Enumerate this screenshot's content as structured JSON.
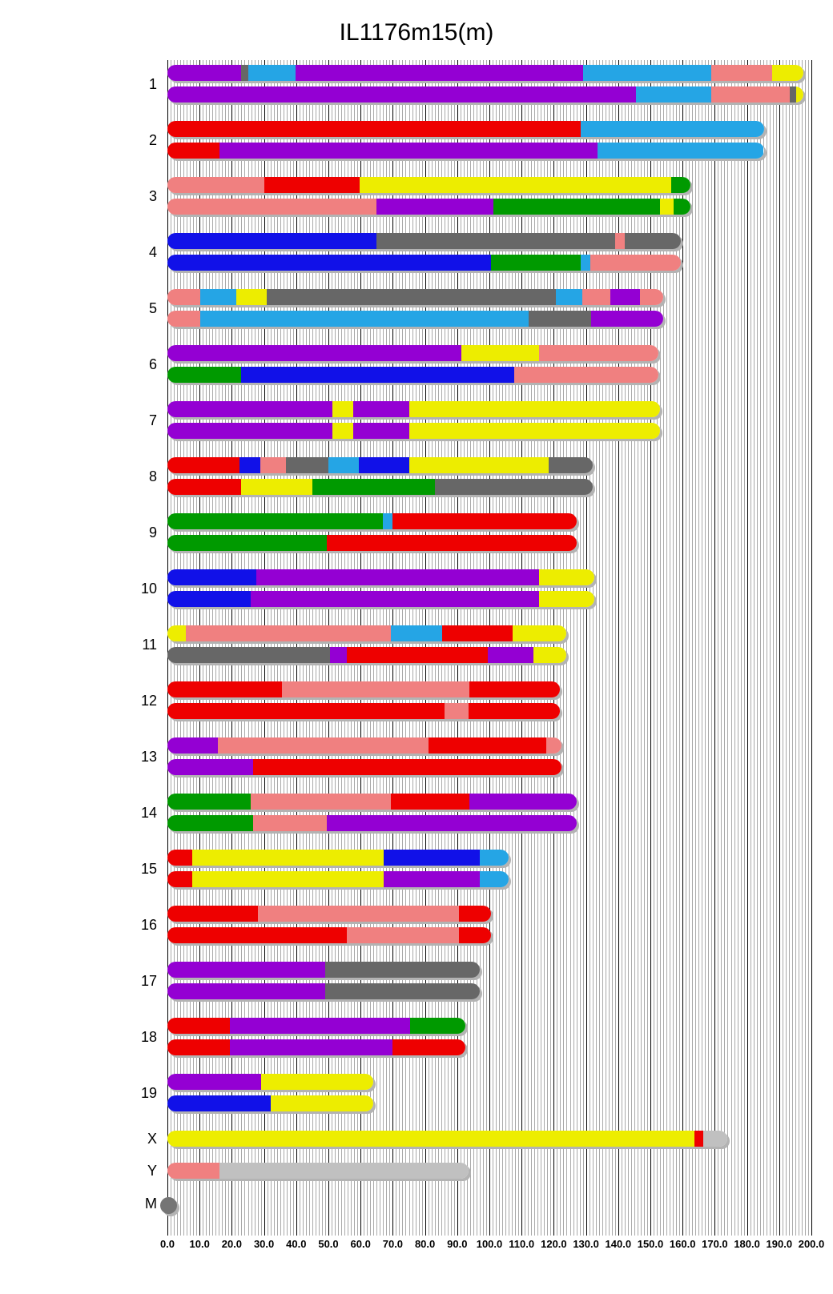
{
  "chart_data": {
    "type": "ideogram",
    "title": "IL1176m15(m)",
    "x_axis": {
      "min": 0,
      "max": 200,
      "major_step": 10,
      "minor_step": 1,
      "tick_labels": [
        "0.0",
        "10.0",
        "20.0",
        "30.0",
        "40.0",
        "50.0",
        "60.0",
        "70.0",
        "80.0",
        "90.0",
        "100.0",
        "110.0",
        "120.0",
        "130.0",
        "140.0",
        "150.0",
        "160.0",
        "170.0",
        "180.0",
        "190.0",
        "200.0"
      ],
      "units": "Mb"
    },
    "legend_position": "none",
    "grid": "on",
    "colors": {
      "red": "#ee0000",
      "pink": "#f08080",
      "yellow": "#ededed00",
      "purple": "#9400d3",
      "blue": "#1111e8",
      "cyan": "#25a5e5",
      "green": "#009a00",
      "darkgray": "#676767",
      "lightgray": "#c0c0c0",
      "dotgray": "#757575"
    },
    "chromosomes": [
      {
        "name": "1",
        "rows": [
          [
            [
              "purple",
              0,
              22.8
            ],
            [
              "darkgray",
              22.8,
              25.2
            ],
            [
              "cyan",
              25.2,
              39.8
            ],
            [
              "purple",
              39.8,
              129.0
            ],
            [
              "cyan",
              129.0,
              168.8
            ],
            [
              "pink",
              168.8,
              187.8
            ],
            [
              "yellow",
              187.8,
              197.5
            ]
          ],
          [
            [
              "purple",
              0,
              145.4
            ],
            [
              "cyan",
              145.4,
              168.8
            ],
            [
              "pink",
              168.8,
              193.3
            ],
            [
              "darkgray",
              193.3,
              195.3
            ],
            [
              "yellow",
              195.3,
              197.5
            ]
          ]
        ]
      },
      {
        "name": "2",
        "rows": [
          [
            [
              "red",
              0,
              128.3
            ],
            [
              "cyan",
              128.3,
              185.2
            ]
          ],
          [
            [
              "red",
              0,
              16.2
            ],
            [
              "purple",
              16.2,
              133.7
            ],
            [
              "cyan",
              133.7,
              185.2
            ]
          ]
        ]
      },
      {
        "name": "3",
        "rows": [
          [
            [
              "pink",
              0,
              30.2
            ],
            [
              "red",
              30.2,
              59.7
            ],
            [
              "yellow",
              59.7,
              156.5
            ],
            [
              "green",
              156.5,
              162.5
            ]
          ],
          [
            [
              "pink",
              0,
              65.0
            ],
            [
              "purple",
              65.0,
              101.3
            ],
            [
              "green",
              101.3,
              152.9
            ],
            [
              "yellow",
              152.9,
              157.2
            ],
            [
              "green",
              157.2,
              162.5
            ]
          ]
        ]
      },
      {
        "name": "4",
        "rows": [
          [
            [
              "blue",
              0,
              65.0
            ],
            [
              "darkgray",
              65.0,
              139.0
            ],
            [
              "pink",
              139.0,
              142.0
            ],
            [
              "darkgray",
              142.0,
              159.5
            ]
          ],
          [
            [
              "blue",
              0,
              100.6
            ],
            [
              "green",
              100.6,
              128.3
            ],
            [
              "cyan",
              128.3,
              131.4
            ],
            [
              "pink",
              131.4,
              159.5
            ]
          ]
        ]
      },
      {
        "name": "5",
        "rows": [
          [
            [
              "pink",
              0,
              10.2
            ],
            [
              "cyan",
              10.2,
              21.3
            ],
            [
              "yellow",
              21.3,
              30.9
            ],
            [
              "darkgray",
              30.9,
              120.6
            ],
            [
              "cyan",
              120.6,
              128.8
            ],
            [
              "pink",
              128.8,
              137.5
            ],
            [
              "purple",
              137.5,
              146.7
            ],
            [
              "pink",
              146.7,
              154.0
            ]
          ],
          [
            [
              "pink",
              0,
              10.2
            ],
            [
              "cyan",
              10.2,
              112.1
            ],
            [
              "darkgray",
              112.1,
              131.7
            ],
            [
              "purple",
              131.7,
              154.0
            ]
          ]
        ]
      },
      {
        "name": "6",
        "rows": [
          [
            [
              "purple",
              0,
              91.3
            ],
            [
              "yellow",
              91.3,
              115.5
            ],
            [
              "pink",
              115.5,
              152.5
            ]
          ],
          [
            [
              "green",
              0,
              22.8
            ],
            [
              "blue",
              22.8,
              107.7
            ],
            [
              "pink",
              107.7,
              152.5
            ]
          ]
        ]
      },
      {
        "name": "7",
        "rows": [
          [
            [
              "purple",
              0,
              51.2
            ],
            [
              "yellow",
              51.2,
              57.6
            ],
            [
              "purple",
              57.6,
              75.2
            ],
            [
              "yellow",
              75.2,
              153.0
            ]
          ],
          [
            [
              "purple",
              0,
              51.2
            ],
            [
              "yellow",
              51.2,
              57.6
            ],
            [
              "purple",
              57.6,
              75.2
            ],
            [
              "yellow",
              75.2,
              153.0
            ]
          ]
        ]
      },
      {
        "name": "8",
        "rows": [
          [
            [
              "red",
              0,
              22.4
            ],
            [
              "blue",
              22.4,
              28.9
            ],
            [
              "pink",
              28.9,
              36.9
            ],
            [
              "darkgray",
              36.9,
              50.0
            ],
            [
              "cyan",
              50.0,
              59.5
            ],
            [
              "blue",
              59.5,
              75.2
            ],
            [
              "yellow",
              75.2,
              118.3
            ],
            [
              "darkgray",
              118.3,
              132.0
            ]
          ],
          [
            [
              "red",
              0,
              22.8
            ],
            [
              "yellow",
              22.8,
              45.1
            ],
            [
              "green",
              45.1,
              83.2
            ],
            [
              "darkgray",
              83.2,
              132.0
            ]
          ]
        ]
      },
      {
        "name": "9",
        "rows": [
          [
            [
              "green",
              0,
              66.9
            ],
            [
              "cyan",
              66.9,
              70.0
            ],
            [
              "red",
              70.0,
              127.0
            ]
          ],
          [
            [
              "green",
              0,
              49.4
            ],
            [
              "red",
              49.4,
              127.0
            ]
          ]
        ]
      },
      {
        "name": "10",
        "rows": [
          [
            [
              "blue",
              0,
              27.7
            ],
            [
              "purple",
              27.7,
              115.5
            ],
            [
              "yellow",
              115.5,
              132.5
            ]
          ],
          [
            [
              "blue",
              0,
              25.9
            ],
            [
              "purple",
              25.9,
              115.5
            ],
            [
              "yellow",
              115.5,
              132.5
            ]
          ]
        ]
      },
      {
        "name": "11",
        "rows": [
          [
            [
              "yellow",
              0,
              5.7
            ],
            [
              "pink",
              5.7,
              69.3
            ],
            [
              "cyan",
              69.3,
              85.3
            ],
            [
              "red",
              85.3,
              107.3
            ],
            [
              "yellow",
              107.3,
              124.0
            ]
          ],
          [
            [
              "darkgray",
              0,
              50.4
            ],
            [
              "purple",
              50.4,
              55.8
            ],
            [
              "red",
              55.8,
              99.6
            ],
            [
              "purple",
              99.6,
              113.8
            ],
            [
              "yellow",
              113.8,
              124.0
            ]
          ]
        ]
      },
      {
        "name": "12",
        "rows": [
          [
            [
              "red",
              0,
              35.6
            ],
            [
              "pink",
              35.6,
              93.9
            ],
            [
              "red",
              93.9,
              122.0
            ]
          ],
          [
            [
              "red",
              0,
              86.0
            ],
            [
              "pink",
              86.0,
              93.5
            ],
            [
              "red",
              93.5,
              122.0
            ]
          ]
        ]
      },
      {
        "name": "13",
        "rows": [
          [
            [
              "purple",
              0,
              15.6
            ],
            [
              "pink",
              15.6,
              81.1
            ],
            [
              "red",
              81.1,
              117.6
            ],
            [
              "pink",
              117.6,
              122.5
            ]
          ],
          [
            [
              "purple",
              0,
              26.6
            ],
            [
              "red",
              26.6,
              122.5
            ]
          ]
        ]
      },
      {
        "name": "14",
        "rows": [
          [
            [
              "green",
              0,
              25.9
            ],
            [
              "pink",
              25.9,
              69.3
            ],
            [
              "red",
              69.3,
              93.9
            ],
            [
              "purple",
              93.9,
              127.0
            ]
          ],
          [
            [
              "green",
              0,
              26.6
            ],
            [
              "pink",
              26.6,
              49.4
            ],
            [
              "purple",
              49.4,
              127.0
            ]
          ]
        ]
      },
      {
        "name": "15",
        "rows": [
          [
            [
              "red",
              0,
              7.8
            ],
            [
              "yellow",
              7.8,
              67.1
            ],
            [
              "blue",
              67.1,
              97.0
            ],
            [
              "cyan",
              97.0,
              106.0
            ]
          ],
          [
            [
              "red",
              0,
              7.8
            ],
            [
              "yellow",
              7.8,
              67.1
            ],
            [
              "purple",
              67.1,
              97.0
            ],
            [
              "cyan",
              97.0,
              106.0
            ]
          ]
        ]
      },
      {
        "name": "16",
        "rows": [
          [
            [
              "red",
              0,
              28.0
            ],
            [
              "pink",
              28.0,
              90.6
            ],
            [
              "red",
              90.6,
              100.5
            ]
          ],
          [
            [
              "red",
              0,
              55.8
            ],
            [
              "pink",
              55.8,
              90.6
            ],
            [
              "red",
              90.6,
              100.5
            ]
          ]
        ]
      },
      {
        "name": "17",
        "rows": [
          [
            [
              "purple",
              0,
              49.1
            ],
            [
              "darkgray",
              49.1,
              97.0
            ]
          ],
          [
            [
              "purple",
              0,
              49.1
            ],
            [
              "darkgray",
              49.1,
              97.0
            ]
          ]
        ]
      },
      {
        "name": "18",
        "rows": [
          [
            [
              "red",
              0,
              19.5
            ],
            [
              "purple",
              19.5,
              75.4
            ],
            [
              "green",
              75.4,
              92.5
            ]
          ],
          [
            [
              "red",
              0,
              19.5
            ],
            [
              "purple",
              19.5,
              70.0
            ],
            [
              "red",
              70.0,
              92.5
            ]
          ]
        ]
      },
      {
        "name": "19",
        "rows": [
          [
            [
              "purple",
              0,
              29.0
            ],
            [
              "yellow",
              29.0,
              64.0
            ]
          ],
          [
            [
              "blue",
              0,
              32.0
            ],
            [
              "yellow",
              32.0,
              64.0
            ]
          ]
        ]
      },
      {
        "name": "X",
        "rows": [
          [
            [
              "yellow",
              0,
              163.8
            ],
            [
              "red",
              163.8,
              166.5
            ],
            [
              "lightgray",
              166.5,
              174.0
            ]
          ]
        ]
      },
      {
        "name": "Y",
        "rows": [
          [
            [
              "pink",
              0,
              16.2
            ],
            [
              "lightgray",
              16.2,
              93.5
            ]
          ]
        ]
      },
      {
        "name": "M",
        "type": "dot",
        "dot_color": "dotgray",
        "rows": []
      }
    ]
  }
}
